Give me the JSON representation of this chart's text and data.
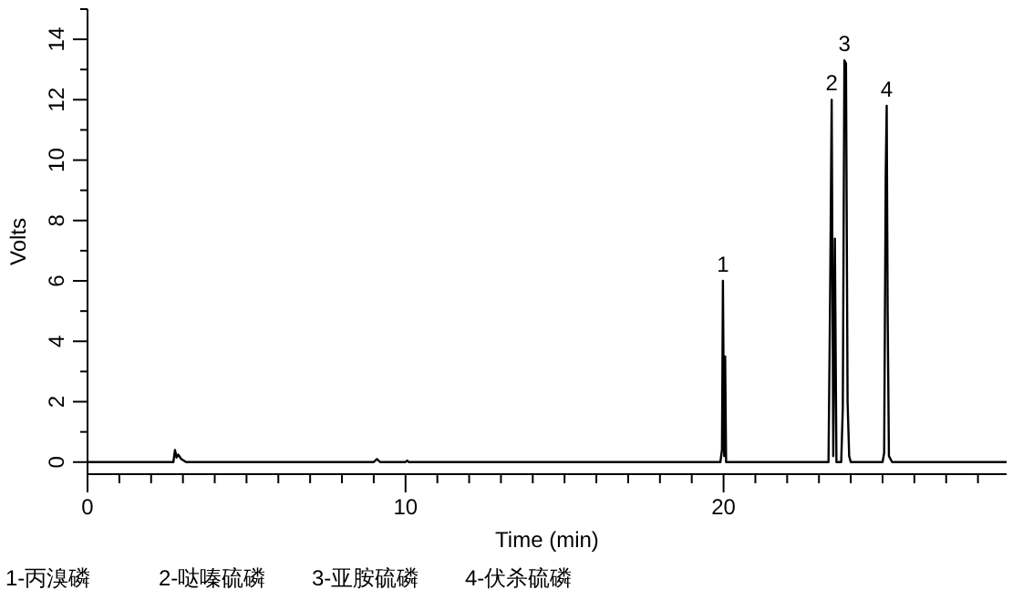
{
  "chart_data": {
    "type": "line",
    "xlabel": "Time (min)",
    "ylabel": "Volts",
    "xlim": [
      0,
      28.9
    ],
    "xticks": [
      0,
      {
        "value": 1,
        "label": null
      },
      {
        "value": 2,
        "label": null
      },
      {
        "value": 3,
        "label": null
      },
      {
        "value": 4,
        "label": null
      },
      {
        "value": 5,
        "label": null
      },
      {
        "value": 6,
        "label": null
      },
      {
        "value": 7,
        "label": null
      },
      {
        "value": 8,
        "label": null
      },
      {
        "value": 9,
        "label": null
      },
      10,
      {
        "value": 11,
        "label": null
      },
      {
        "value": 12,
        "label": null
      },
      {
        "value": 13,
        "label": null
      },
      {
        "value": 14,
        "label": null
      },
      {
        "value": 15,
        "label": null
      },
      {
        "value": 16,
        "label": null
      },
      {
        "value": 17,
        "label": null
      },
      {
        "value": 18,
        "label": null
      },
      {
        "value": 19,
        "label": null
      },
      20,
      {
        "value": 21,
        "label": null
      },
      {
        "value": 22,
        "label": null
      },
      {
        "value": 23,
        "label": null
      },
      {
        "value": 24,
        "label": null
      },
      {
        "value": 25,
        "label": null
      },
      {
        "value": 26,
        "label": null
      },
      {
        "value": 27,
        "label": null
      },
      {
        "value": 28,
        "label": null
      }
    ],
    "ylim": [
      -0.4,
      15
    ],
    "yticks": [
      0,
      {
        "value": 1,
        "label": null
      },
      2,
      {
        "value": 3,
        "label": null
      },
      4,
      {
        "value": 5,
        "label": null
      },
      6,
      {
        "value": 7,
        "label": null
      },
      8,
      {
        "value": 9,
        "label": null
      },
      10,
      {
        "value": 11,
        "label": null
      },
      12,
      {
        "value": 13,
        "label": null
      },
      14,
      {
        "value": 15,
        "label": null
      }
    ],
    "grid": false,
    "marker": "none",
    "line_style": "solid",
    "series": [
      {
        "color": "#000000",
        "x": [
          0,
          2.7,
          2.75,
          2.8,
          2.85,
          2.95,
          3.1,
          9.0,
          9.1,
          9.2,
          10.0,
          10.05,
          10.1,
          19.9,
          19.95,
          19.98,
          20.02,
          20.05,
          20.08,
          23.3,
          23.35,
          23.4,
          23.45,
          23.5,
          23.55,
          23.7,
          23.75,
          23.8,
          23.85,
          23.9,
          23.95,
          24.0,
          25.0,
          25.05,
          25.1,
          25.13,
          25.16,
          25.2,
          25.3,
          28.9
        ],
        "values": [
          0,
          0,
          0.4,
          0.15,
          0.25,
          0.1,
          0,
          0,
          0.1,
          0,
          0,
          0.05,
          0,
          0,
          0.4,
          6.0,
          0.2,
          3.5,
          0,
          0,
          5.4,
          12.0,
          0.2,
          7.4,
          0,
          0,
          1.8,
          13.3,
          13.2,
          2,
          0.2,
          0,
          0,
          0.3,
          9.6,
          11.8,
          5,
          0.2,
          0,
          0
        ]
      }
    ],
    "annotations": [
      {
        "text": "1",
        "x": 19.98,
        "y": 6.0
      },
      {
        "text": "2",
        "x": 23.4,
        "y": 12.0
      },
      {
        "text": "3",
        "x": 23.8,
        "y": 13.3
      },
      {
        "text": "4",
        "x": 25.13,
        "y": 11.8
      },
      "1-丙溴磷",
      "2-哒嗪硫磷",
      "3-亚胺硫磷",
      "4-伏杀硫磷"
    ]
  }
}
